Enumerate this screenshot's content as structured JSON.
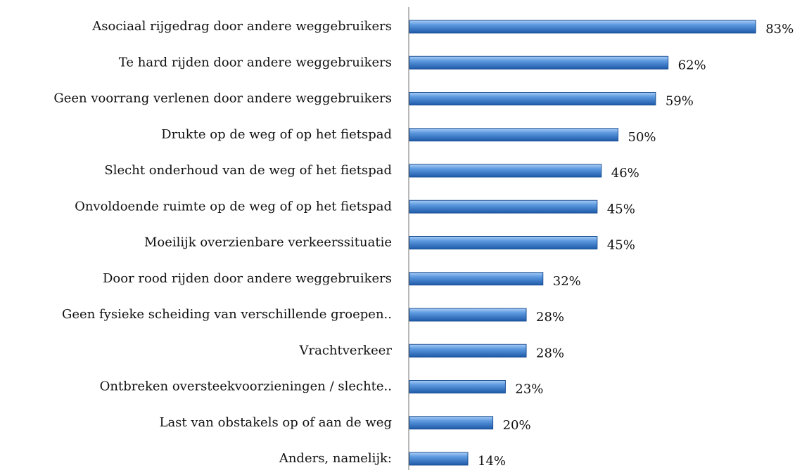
{
  "chart_data": {
    "type": "barh",
    "categories": [
      "Asociaal rijgedrag door andere weggebruikers",
      "Te hard rijden door andere weggebruikers",
      "Geen voorrang verlenen door andere weggebruikers",
      "Drukte op de weg of op het fietspad",
      "Slecht onderhoud van de weg of het fietspad",
      "Onvoldoende ruimte op de weg of op het fietspad",
      "Moeilijk overzienbare verkeerssituatie",
      "Door rood rijden door andere weggebruikers",
      "Geen fysieke scheiding van verschillende groepen..",
      "Vrachtverkeer",
      "Ontbreken oversteekvoorzieningen / slechte..",
      "Last van obstakels op of aan de weg",
      "Anders, namelijk:"
    ],
    "values": [
      83,
      62,
      59,
      50,
      46,
      45,
      45,
      32,
      28,
      28,
      23,
      20,
      14
    ],
    "value_labels": [
      "83%",
      "62%",
      "59%",
      "50%",
      "46%",
      "45%",
      "45%",
      "32%",
      "28%",
      "28%",
      "23%",
      "20%",
      "14%"
    ],
    "color": "#3a78c8"
  }
}
